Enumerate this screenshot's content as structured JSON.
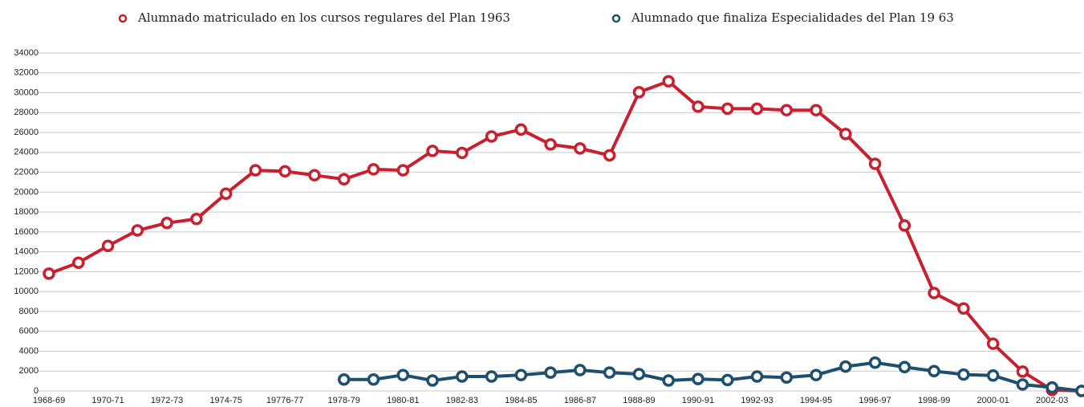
{
  "chart_data": {
    "type": "line",
    "categories": [
      "1968-69",
      null,
      "1970-71",
      null,
      "1972-73",
      null,
      "1974-75",
      null,
      "19776-77",
      null,
      "1978-79",
      null,
      "1980-81",
      null,
      "1982-83",
      null,
      "1984-85",
      null,
      "1986-87",
      null,
      "1988-89",
      null,
      "1990-91",
      null,
      "1992-93",
      null,
      "1994-95",
      null,
      "1996-97",
      null,
      "1998-99",
      null,
      "2000-01",
      null,
      "2002-03",
      null
    ],
    "series": [
      {
        "name": "Alumnado matriculado en los cursos regulares del  Plan 1963",
        "color": "#c8202f",
        "values": [
          11800,
          12900,
          14600,
          16150,
          16900,
          17300,
          19850,
          22200,
          22100,
          21700,
          21300,
          22300,
          22200,
          24150,
          23950,
          25600,
          26300,
          24800,
          24400,
          23700,
          30050,
          31150,
          28600,
          28400,
          28400,
          28250,
          28250,
          25850,
          22850,
          16650,
          9850,
          8300,
          4750,
          1950,
          100,
          0
        ]
      },
      {
        "name": "Alumnado que finaliza Especialidades del Plan 19 63",
        "color": "#1d4f6e",
        "values": [
          null,
          null,
          null,
          null,
          null,
          null,
          null,
          null,
          null,
          null,
          1150,
          1150,
          1600,
          1050,
          1450,
          1450,
          1600,
          1850,
          2100,
          1850,
          1700,
          1050,
          1200,
          1100,
          1450,
          1350,
          1600,
          2450,
          2850,
          2400,
          2000,
          1650,
          1550,
          650,
          350,
          0
        ]
      }
    ],
    "ylim": [
      0,
      34000
    ],
    "yticks": [
      0,
      2000,
      4000,
      6000,
      8000,
      10000,
      12000,
      14000,
      16000,
      18000,
      20000,
      22000,
      24000,
      26000,
      28000,
      30000,
      32000,
      34000
    ],
    "grid": true,
    "legend": "top"
  }
}
